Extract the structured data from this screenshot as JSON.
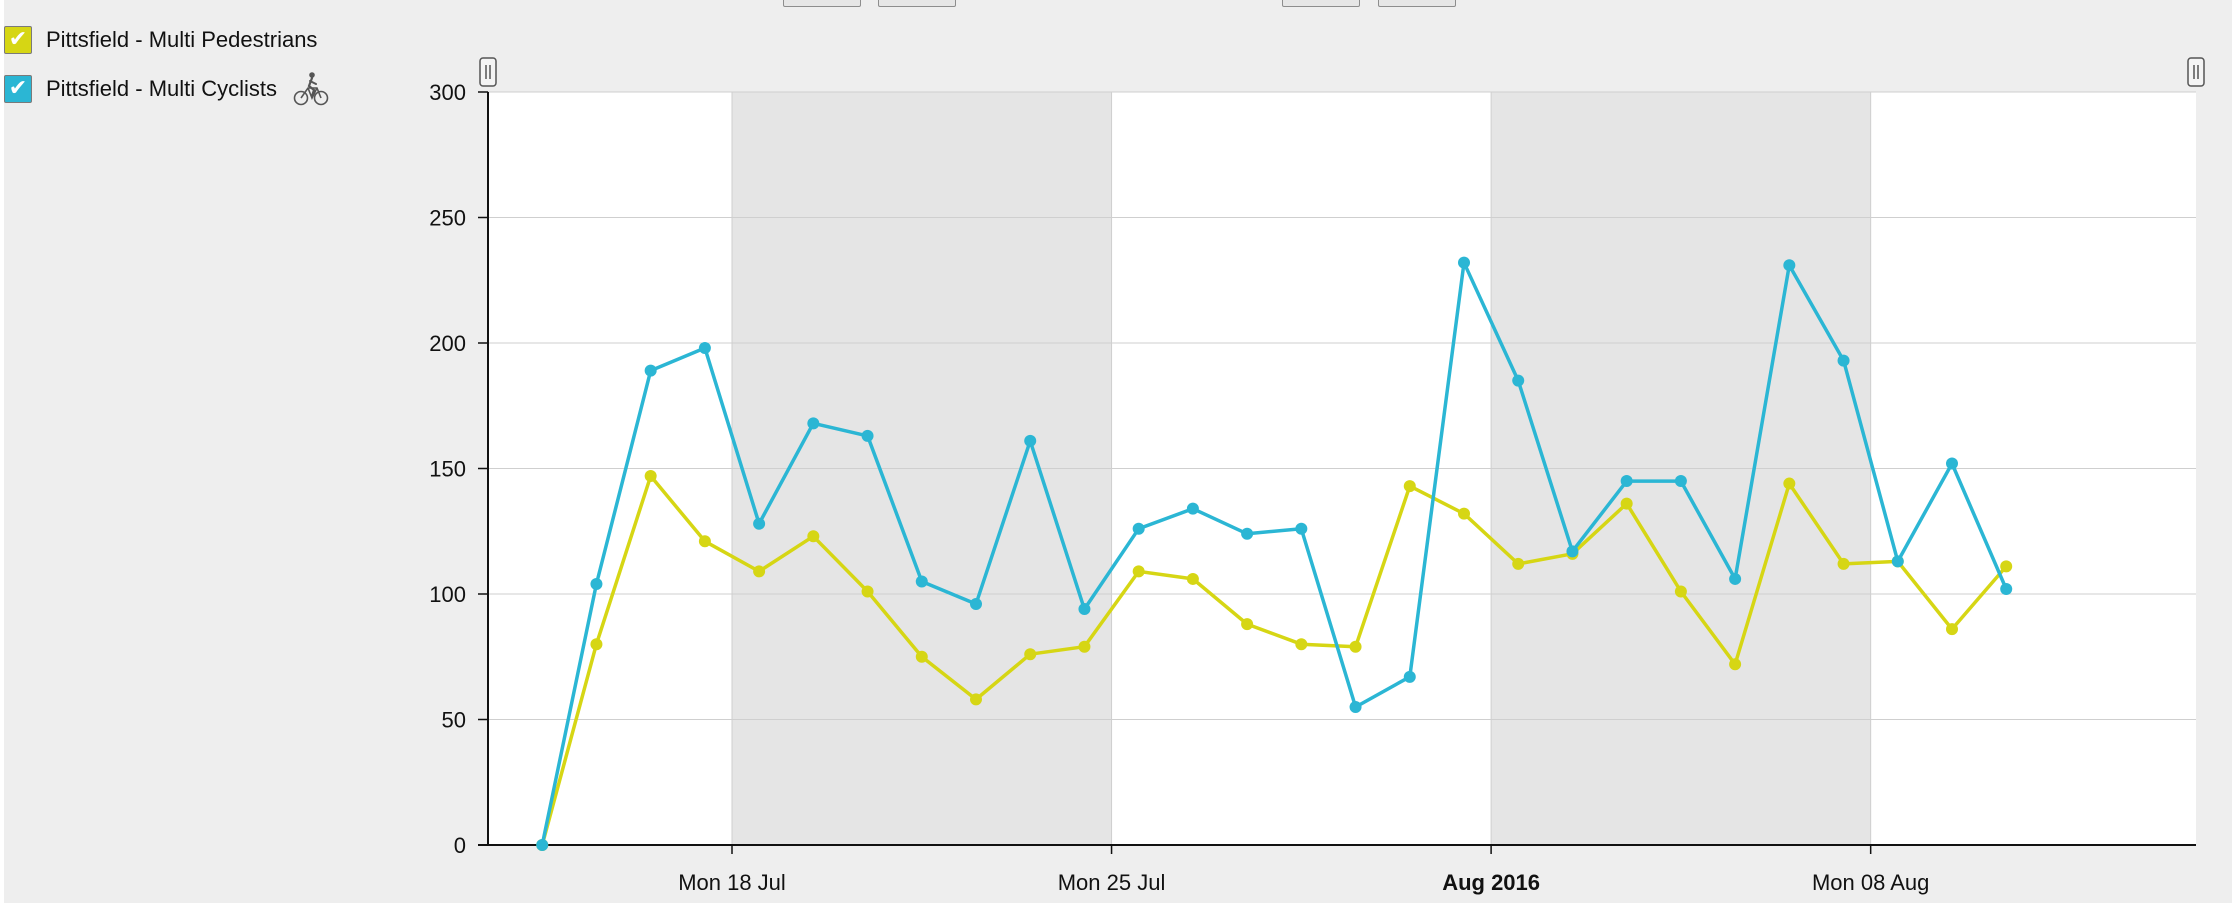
{
  "colors": {
    "panel_bg": "#eeeeee",
    "plot_bg": "#ffffff",
    "weekend_band": "#e5e5e5",
    "grid": "#cfcfcf",
    "axis": "#111111",
    "pedestrians": "#d6d614",
    "cyclists": "#2bb6d4"
  },
  "legend": [
    {
      "label": "Pittsfield - Multi Pedestrians",
      "checked": true,
      "color": "#d6d614",
      "icon": ""
    },
    {
      "label": "Pittsfield - Multi Cyclists",
      "checked": true,
      "color": "#2bb6d4",
      "icon": "cyclist-icon"
    }
  ],
  "chart_data": {
    "type": "line",
    "title": "",
    "xlabel": "",
    "ylabel": "",
    "ylim": [
      0,
      300
    ],
    "yticks": [
      0,
      50,
      100,
      150,
      200,
      250,
      300
    ],
    "xlim": [
      "2016-07-13T12:00",
      "2016-08-14"
    ],
    "xticks": [
      {
        "date": "2016-07-18",
        "label": "Mon 18 Jul",
        "bold": false
      },
      {
        "date": "2016-07-25",
        "label": "Mon 25 Jul",
        "bold": false
      },
      {
        "date": "2016-08-01",
        "label": "Aug 2016",
        "bold": true
      },
      {
        "date": "2016-08-08",
        "label": "Mon 08 Aug",
        "bold": false
      }
    ],
    "weekend_bands": [
      [
        "2016-07-18",
        "2016-07-25"
      ],
      [
        "2016-08-01",
        "2016-08-08"
      ]
    ],
    "grid": true,
    "x": [
      "2016-07-14T12:00",
      "2016-07-15T12:00",
      "2016-07-16T12:00",
      "2016-07-17T12:00",
      "2016-07-18T12:00",
      "2016-07-19T12:00",
      "2016-07-20T12:00",
      "2016-07-21T12:00",
      "2016-07-22T12:00",
      "2016-07-23T12:00",
      "2016-07-24T12:00",
      "2016-07-25T12:00",
      "2016-07-26T12:00",
      "2016-07-27T12:00",
      "2016-07-28T12:00",
      "2016-07-29T12:00",
      "2016-07-30T12:00",
      "2016-07-31T12:00",
      "2016-08-01T12:00",
      "2016-08-02T12:00",
      "2016-08-03T12:00",
      "2016-08-04T12:00",
      "2016-08-05T12:00",
      "2016-08-06T12:00",
      "2016-08-07T12:00",
      "2016-08-08T12:00",
      "2016-08-09T12:00",
      "2016-08-10T12:00"
    ],
    "series": [
      {
        "name": "Pittsfield - Multi Pedestrians",
        "color": "#d6d614",
        "values": [
          0,
          80,
          147,
          121,
          109,
          123,
          101,
          75,
          58,
          76,
          79,
          109,
          106,
          88,
          80,
          79,
          143,
          132,
          112,
          116,
          136,
          101,
          72,
          144,
          112,
          113,
          86,
          111
        ]
      },
      {
        "name": "Pittsfield - Multi Cyclists",
        "color": "#2bb6d4",
        "values": [
          0,
          104,
          189,
          198,
          128,
          168,
          163,
          105,
          96,
          161,
          94,
          126,
          134,
          124,
          126,
          55,
          67,
          232,
          185,
          117,
          145,
          145,
          106,
          231,
          193,
          113,
          152,
          102
        ]
      }
    ]
  }
}
